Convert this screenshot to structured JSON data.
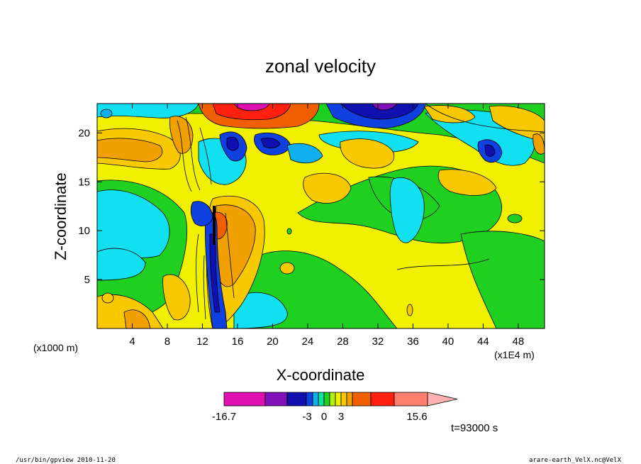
{
  "chart_data": {
    "type": "heatmap",
    "title": "zonal velocity",
    "xlabel": "X-coordinate",
    "ylabel": "Z-coordinate",
    "x_unit_note": "(x1000 m)",
    "x_scale_note": "(x1E4 m)",
    "x_ticks": [
      4,
      8,
      12,
      16,
      20,
      24,
      28,
      32,
      36,
      40,
      44,
      48
    ],
    "y_ticks": [
      5,
      10,
      15,
      20
    ],
    "xlim": [
      0,
      51
    ],
    "ylim": [
      0,
      23
    ],
    "colorbar": {
      "labels": [
        {
          "text": "-16.7",
          "value": -16.7
        },
        {
          "text": "-3",
          "value": -3
        },
        {
          "text": "0",
          "value": 0
        },
        {
          "text": "3",
          "value": 3
        },
        {
          "text": "15.6",
          "value": 15.6
        }
      ],
      "colors": [
        "#e010b0",
        "#8010b8",
        "#1010b0",
        "#1040e0",
        "#10b0f0",
        "#10e0a0",
        "#20d020",
        "#b0f010",
        "#f0f000",
        "#f8c800",
        "#f0a000",
        "#f06000",
        "#ff2010",
        "#ff8070",
        "#ffb0b0"
      ]
    },
    "time_label": "t=93000 s"
  },
  "footer": {
    "left": "/usr/bin/gpview  2010-11-20",
    "right": "arare-earth_VelX.nc@VelX"
  }
}
